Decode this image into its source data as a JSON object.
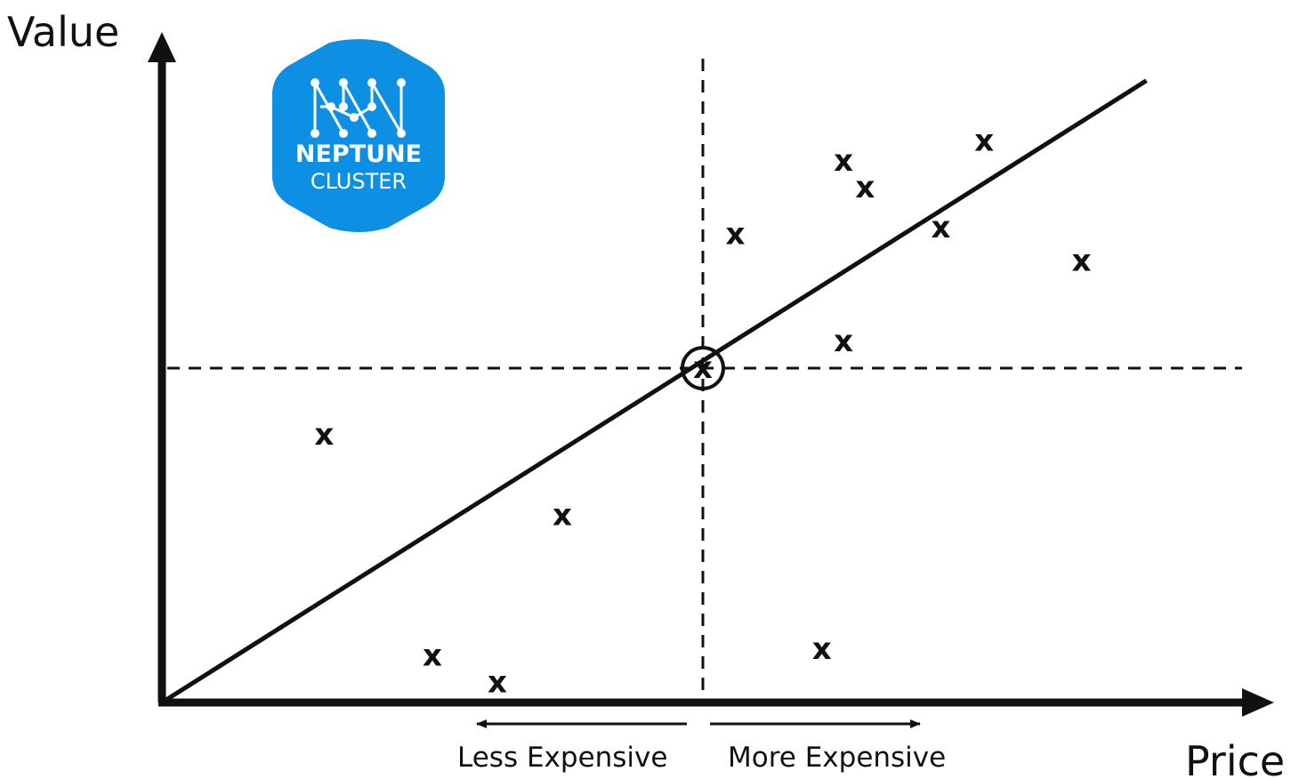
{
  "chart_data": {
    "type": "scatter",
    "title": "",
    "xlabel": "Price",
    "ylabel": "Value",
    "xlim": [
      0,
      10
    ],
    "ylim": [
      0,
      10
    ],
    "grid": false,
    "points": [
      {
        "x": 1.5,
        "y": 4.0,
        "label": "x"
      },
      {
        "x": 3.7,
        "y": 2.8,
        "label": "x"
      },
      {
        "x": 2.5,
        "y": 0.7,
        "label": "x"
      },
      {
        "x": 3.1,
        "y": 0.3,
        "label": "x"
      },
      {
        "x": 5.0,
        "y": 5.0,
        "label": "x",
        "highlighted": true
      },
      {
        "x": 5.3,
        "y": 7.0,
        "label": "x"
      },
      {
        "x": 6.3,
        "y": 8.1,
        "label": "x"
      },
      {
        "x": 6.5,
        "y": 7.7,
        "label": "x"
      },
      {
        "x": 7.2,
        "y": 7.1,
        "label": "x"
      },
      {
        "x": 7.6,
        "y": 8.4,
        "label": "x"
      },
      {
        "x": 8.5,
        "y": 6.6,
        "label": "x"
      },
      {
        "x": 6.3,
        "y": 5.4,
        "label": "x"
      },
      {
        "x": 6.1,
        "y": 0.8,
        "label": "x"
      }
    ],
    "trend_line": {
      "from": [
        0,
        0
      ],
      "to": [
        9.1,
        9.3
      ]
    },
    "reference_lines": {
      "x": 5.0,
      "y": 5.0
    },
    "direction_labels": {
      "left": "Less Expensive",
      "right": "More Expensive"
    }
  },
  "logo": {
    "line1": "NEPTUNE",
    "line2": "CLUSTER",
    "color": "#0d8fe4"
  },
  "colors": {
    "ink": "#111111",
    "background": "#ffffff"
  }
}
